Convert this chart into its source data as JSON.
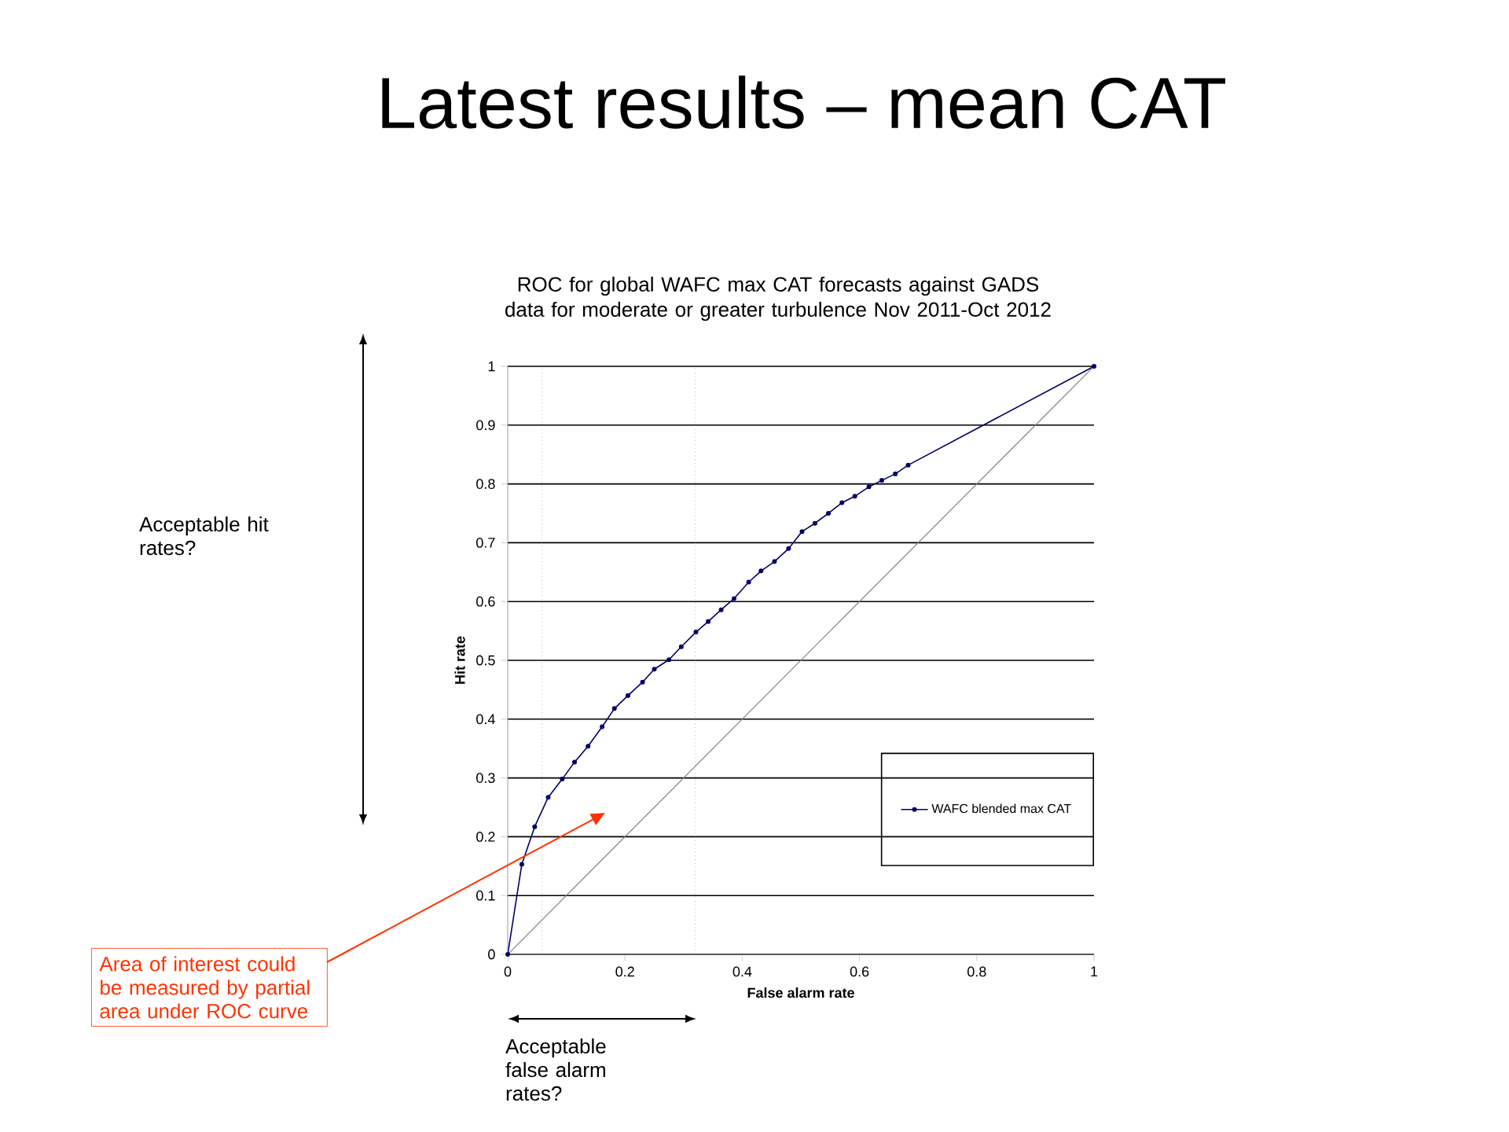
{
  "chart_data": {
    "type": "line",
    "title": "Latest results – mean CAT",
    "subtitle": "ROC for global WAFC max CAT forecasts against GADS data for moderate or greater turbulence Nov 2011-Oct 2012",
    "xlabel": "False alarm rate",
    "ylabel": "Hit rate",
    "xlim": [
      0,
      1
    ],
    "ylim": [
      0,
      1
    ],
    "xticks": [
      0,
      0.2,
      0.4,
      0.6,
      0.8,
      1
    ],
    "yticks": [
      0,
      0.1,
      0.2,
      0.3,
      0.4,
      0.5,
      0.6,
      0.7,
      0.8,
      0.9,
      1
    ],
    "grid": "y",
    "legend": "right",
    "marker": "circle",
    "series": [
      {
        "name": "WAFC blended max CAT",
        "color": "#000066",
        "x": [
          0,
          0.024,
          0.046,
          0.069,
          0.093,
          0.114,
          0.137,
          0.161,
          0.182,
          0.205,
          0.23,
          0.25,
          0.275,
          0.296,
          0.321,
          0.342,
          0.364,
          0.386,
          0.411,
          0.432,
          0.455,
          0.479,
          0.502,
          0.524,
          0.547,
          0.57,
          0.592,
          0.616,
          0.638,
          0.661,
          0.683,
          1
        ],
        "values": [
          0,
          0.153,
          0.217,
          0.267,
          0.298,
          0.327,
          0.354,
          0.387,
          0.418,
          0.44,
          0.463,
          0.485,
          0.501,
          0.523,
          0.548,
          0.566,
          0.586,
          0.605,
          0.633,
          0.652,
          0.668,
          0.69,
          0.719,
          0.733,
          0.75,
          0.768,
          0.779,
          0.795,
          0.806,
          0.817,
          0.832,
          1
        ]
      },
      {
        "color": "#808080",
        "x": [
          0,
          1
        ],
        "values": [
          0,
          1
        ],
        "marker": "none"
      }
    ],
    "ref_lines": [
      {
        "axis": "x",
        "value": 0.058,
        "color": "#808080",
        "line_style": "dotted"
      },
      {
        "axis": "x",
        "value": 0.32,
        "color": "#808080",
        "line_style": "dotted"
      }
    ],
    "annotations": [
      "Acceptable hit rates?",
      "Acceptable false alarm rates?",
      "Area of interest could be measured by partial area under ROC curve"
    ]
  }
}
